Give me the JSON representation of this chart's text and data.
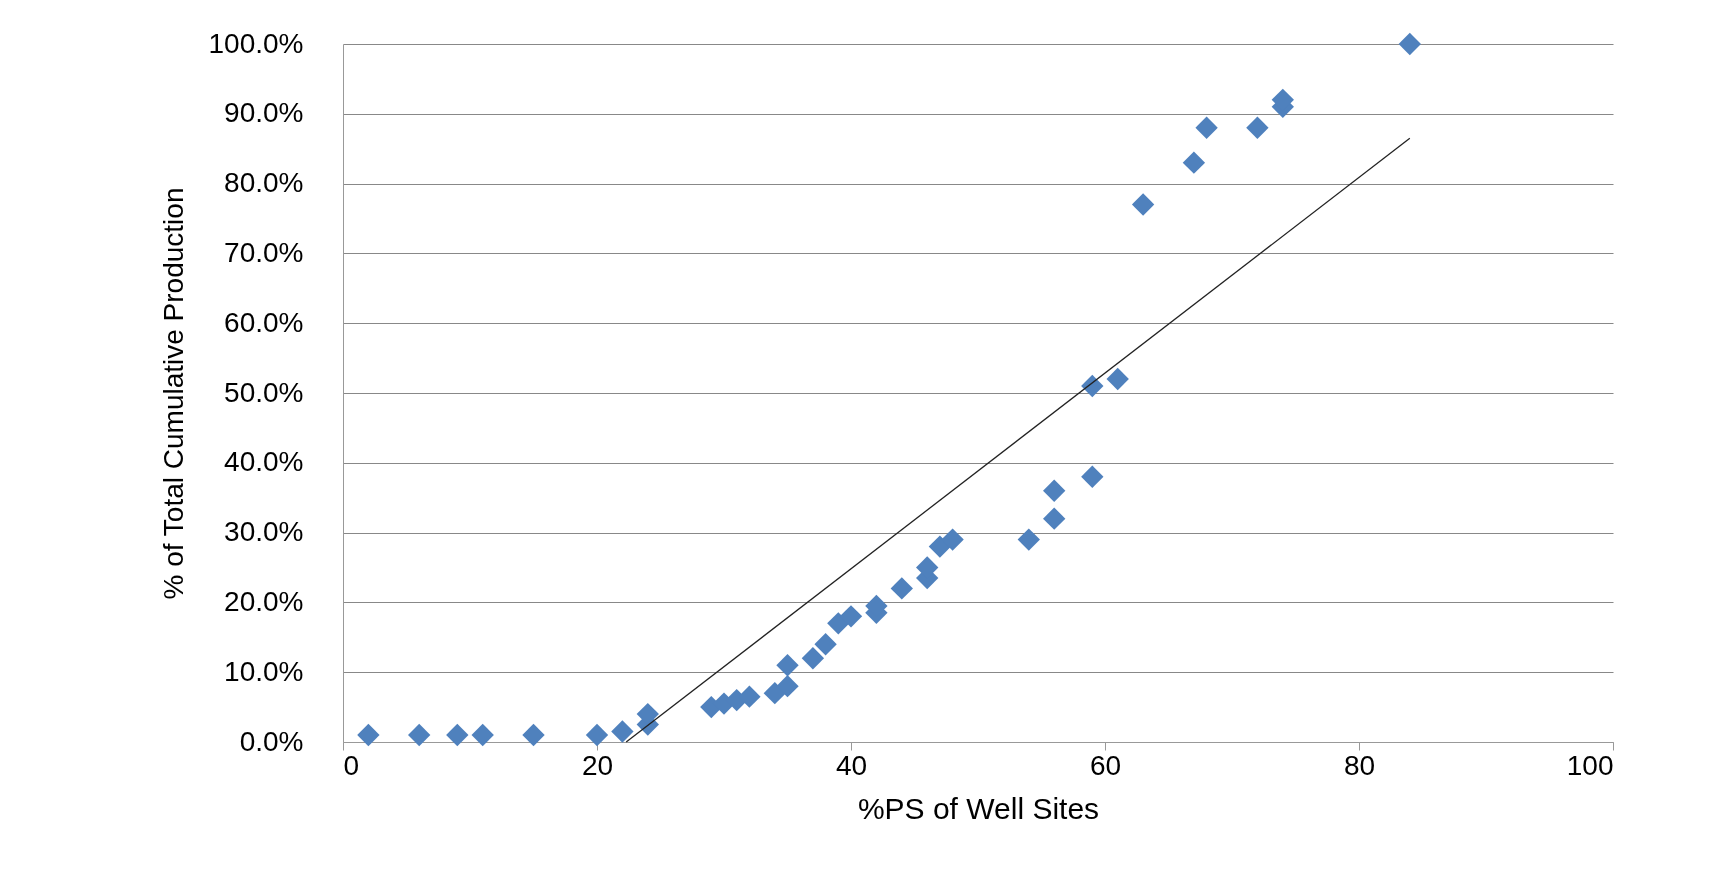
{
  "chart_data": {
    "type": "scatter",
    "xlabel": "%PS of Well Sites",
    "ylabel": "% of Total Cumulative Production",
    "xlim": [
      0,
      100
    ],
    "xticks": [
      0,
      20,
      40,
      60,
      80,
      100
    ],
    "ylim": [
      0,
      100
    ],
    "yticks": [
      {
        "value": 0,
        "label": "0.0%"
      },
      {
        "value": 10,
        "label": "10.0%"
      },
      {
        "value": 20,
        "label": "20.0%"
      },
      {
        "value": 30,
        "label": "30.0%"
      },
      {
        "value": 40,
        "label": "40.0%"
      },
      {
        "value": 50,
        "label": "50.0%"
      },
      {
        "value": 60,
        "label": "60.0%"
      },
      {
        "value": 70,
        "label": "70.0%"
      },
      {
        "value": 80,
        "label": "80.0%"
      },
      {
        "value": 90,
        "label": "90.0%"
      },
      {
        "value": 100,
        "label": "100.0%"
      }
    ],
    "grid": "y",
    "marker": "diamond",
    "series": [
      {
        "color": "#4f81bd",
        "x": [
          2,
          6,
          9,
          11,
          15,
          20,
          22,
          24,
          24,
          29,
          30,
          31,
          32,
          34,
          35,
          35,
          37,
          38,
          39,
          40,
          42,
          42,
          44,
          46,
          46,
          47,
          48,
          54,
          56,
          56,
          59,
          59,
          61,
          63,
          67,
          68,
          72,
          74,
          74,
          84
        ],
        "values": [
          1,
          1,
          1,
          1,
          1,
          1,
          1.5,
          2.5,
          4,
          5,
          5.5,
          6,
          6.5,
          7,
          8,
          11,
          12,
          14,
          17,
          18,
          18.5,
          19.5,
          22,
          23.5,
          25,
          28,
          29,
          29,
          32,
          36,
          38,
          51,
          52,
          77,
          83,
          88,
          88,
          91,
          92,
          100
        ]
      },
      {
        "type": "line",
        "color": "#222222",
        "line_style": "solid",
        "marker": "none",
        "x": [
          22.3,
          84
        ],
        "values": [
          0,
          86.5
        ]
      }
    ]
  }
}
